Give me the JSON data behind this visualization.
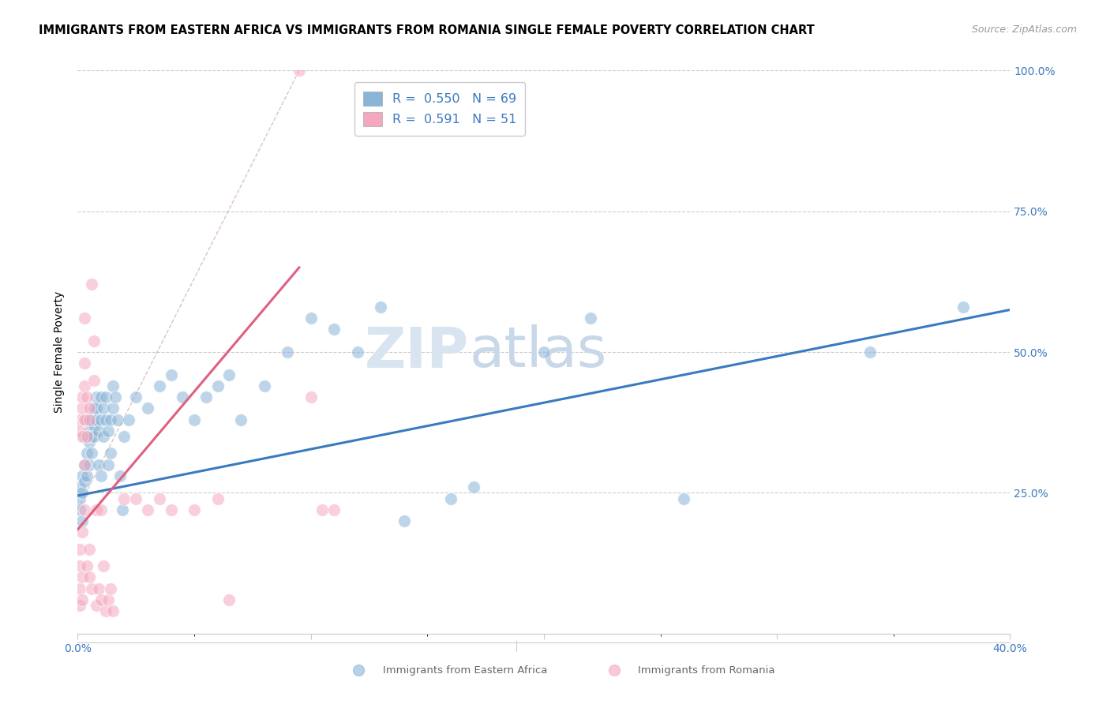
{
  "title": "IMMIGRANTS FROM EASTERN AFRICA VS IMMIGRANTS FROM ROMANIA SINGLE FEMALE POVERTY CORRELATION CHART",
  "source": "Source: ZipAtlas.com",
  "ylabel": "Single Female Poverty",
  "xlim": [
    0.0,
    0.4
  ],
  "ylim": [
    0.0,
    1.0
  ],
  "R_blue": 0.55,
  "N_blue": 69,
  "R_pink": 0.591,
  "N_pink": 51,
  "blue_color": "#8ab4d8",
  "pink_color": "#f4a8be",
  "blue_line_color": "#3a7abf",
  "pink_line_color": "#e06080",
  "legend_label_blue": "Immigrants from Eastern Africa",
  "legend_label_pink": "Immigrants from Romania",
  "watermark": "ZIPatlas",
  "blue_scatter": [
    [
      0.001,
      0.24
    ],
    [
      0.001,
      0.22
    ],
    [
      0.001,
      0.26
    ],
    [
      0.002,
      0.2
    ],
    [
      0.002,
      0.25
    ],
    [
      0.002,
      0.28
    ],
    [
      0.003,
      0.3
    ],
    [
      0.003,
      0.27
    ],
    [
      0.003,
      0.35
    ],
    [
      0.004,
      0.32
    ],
    [
      0.004,
      0.38
    ],
    [
      0.004,
      0.28
    ],
    [
      0.005,
      0.36
    ],
    [
      0.005,
      0.3
    ],
    [
      0.005,
      0.34
    ],
    [
      0.006,
      0.38
    ],
    [
      0.006,
      0.35
    ],
    [
      0.006,
      0.32
    ],
    [
      0.007,
      0.4
    ],
    [
      0.007,
      0.37
    ],
    [
      0.007,
      0.35
    ],
    [
      0.008,
      0.42
    ],
    [
      0.008,
      0.38
    ],
    [
      0.008,
      0.4
    ],
    [
      0.009,
      0.36
    ],
    [
      0.009,
      0.3
    ],
    [
      0.01,
      0.28
    ],
    [
      0.01,
      0.38
    ],
    [
      0.01,
      0.42
    ],
    [
      0.011,
      0.4
    ],
    [
      0.011,
      0.35
    ],
    [
      0.012,
      0.38
    ],
    [
      0.012,
      0.42
    ],
    [
      0.013,
      0.36
    ],
    [
      0.013,
      0.3
    ],
    [
      0.014,
      0.38
    ],
    [
      0.014,
      0.32
    ],
    [
      0.015,
      0.4
    ],
    [
      0.015,
      0.44
    ],
    [
      0.016,
      0.42
    ],
    [
      0.017,
      0.38
    ],
    [
      0.018,
      0.28
    ],
    [
      0.019,
      0.22
    ],
    [
      0.02,
      0.35
    ],
    [
      0.022,
      0.38
    ],
    [
      0.025,
      0.42
    ],
    [
      0.03,
      0.4
    ],
    [
      0.035,
      0.44
    ],
    [
      0.04,
      0.46
    ],
    [
      0.045,
      0.42
    ],
    [
      0.05,
      0.38
    ],
    [
      0.055,
      0.42
    ],
    [
      0.06,
      0.44
    ],
    [
      0.065,
      0.46
    ],
    [
      0.07,
      0.38
    ],
    [
      0.08,
      0.44
    ],
    [
      0.09,
      0.5
    ],
    [
      0.1,
      0.56
    ],
    [
      0.11,
      0.54
    ],
    [
      0.12,
      0.5
    ],
    [
      0.13,
      0.58
    ],
    [
      0.14,
      0.2
    ],
    [
      0.16,
      0.24
    ],
    [
      0.17,
      0.26
    ],
    [
      0.2,
      0.5
    ],
    [
      0.22,
      0.56
    ],
    [
      0.26,
      0.24
    ],
    [
      0.34,
      0.5
    ],
    [
      0.38,
      0.58
    ]
  ],
  "pink_scatter": [
    [
      0.001,
      0.05
    ],
    [
      0.001,
      0.08
    ],
    [
      0.001,
      0.12
    ],
    [
      0.001,
      0.15
    ],
    [
      0.001,
      0.38
    ],
    [
      0.001,
      0.36
    ],
    [
      0.002,
      0.1
    ],
    [
      0.002,
      0.18
    ],
    [
      0.002,
      0.4
    ],
    [
      0.002,
      0.35
    ],
    [
      0.002,
      0.42
    ],
    [
      0.002,
      0.06
    ],
    [
      0.003,
      0.22
    ],
    [
      0.003,
      0.3
    ],
    [
      0.003,
      0.38
    ],
    [
      0.003,
      0.44
    ],
    [
      0.003,
      0.48
    ],
    [
      0.003,
      0.56
    ],
    [
      0.004,
      0.35
    ],
    [
      0.004,
      0.12
    ],
    [
      0.004,
      0.42
    ],
    [
      0.005,
      0.38
    ],
    [
      0.005,
      0.15
    ],
    [
      0.005,
      0.1
    ],
    [
      0.005,
      0.4
    ],
    [
      0.006,
      0.62
    ],
    [
      0.006,
      0.08
    ],
    [
      0.007,
      0.45
    ],
    [
      0.007,
      0.52
    ],
    [
      0.008,
      0.22
    ],
    [
      0.008,
      0.05
    ],
    [
      0.009,
      0.08
    ],
    [
      0.01,
      0.22
    ],
    [
      0.01,
      0.06
    ],
    [
      0.011,
      0.12
    ],
    [
      0.012,
      0.04
    ],
    [
      0.013,
      0.06
    ],
    [
      0.014,
      0.08
    ],
    [
      0.015,
      0.04
    ],
    [
      0.02,
      0.24
    ],
    [
      0.025,
      0.24
    ],
    [
      0.03,
      0.22
    ],
    [
      0.035,
      0.24
    ],
    [
      0.04,
      0.22
    ],
    [
      0.05,
      0.22
    ],
    [
      0.06,
      0.24
    ],
    [
      0.065,
      0.06
    ],
    [
      0.095,
      1.0
    ],
    [
      0.1,
      0.42
    ],
    [
      0.105,
      0.22
    ],
    [
      0.11,
      0.22
    ]
  ],
  "blue_line_x": [
    0.0,
    0.4
  ],
  "blue_line_y": [
    0.245,
    0.575
  ],
  "pink_line_x": [
    0.0,
    0.095
  ],
  "pink_line_y": [
    0.185,
    0.65
  ],
  "diag_line_x": [
    0.0,
    0.095
  ],
  "diag_line_y": [
    0.22,
    1.0
  ]
}
